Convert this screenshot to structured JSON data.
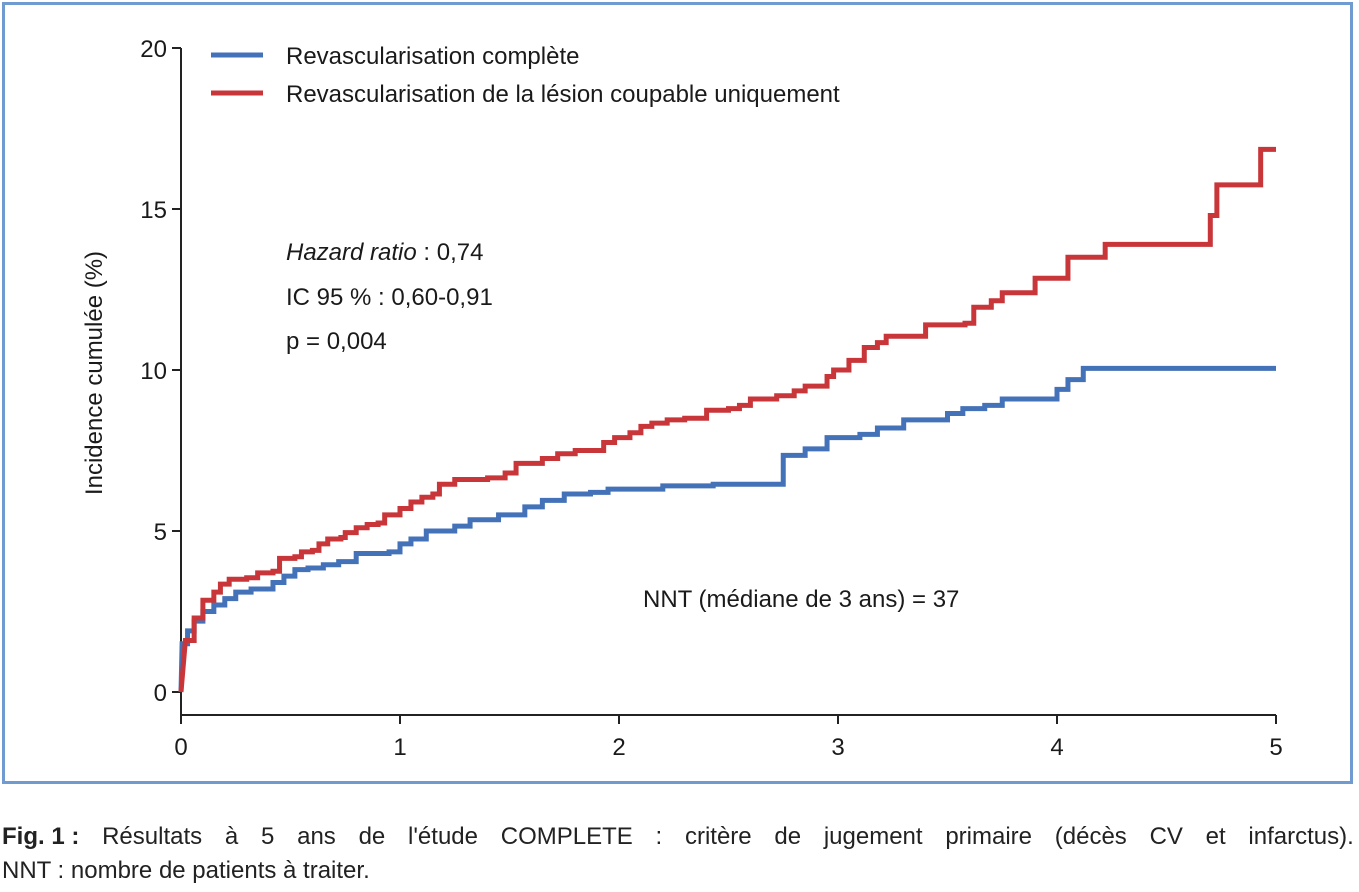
{
  "chart_data": {
    "type": "line",
    "ylabel": "Incidence cumulée (%)",
    "xlabel": "",
    "xlim": [
      0,
      5
    ],
    "ylim": [
      0,
      20
    ],
    "x_ticks": [
      "0",
      "1",
      "2",
      "3",
      "4",
      "5"
    ],
    "y_ticks": [
      "0",
      "5",
      "10",
      "15",
      "20"
    ],
    "grid": false,
    "legend_position": "top-left",
    "series": [
      {
        "name": "Revascularisation complète",
        "color": "#4472b8",
        "step": true,
        "points": [
          [
            0,
            0
          ],
          [
            0.005,
            1.5
          ],
          [
            0.03,
            1.9
          ],
          [
            0.06,
            2.2
          ],
          [
            0.1,
            2.5
          ],
          [
            0.15,
            2.7
          ],
          [
            0.2,
            2.9
          ],
          [
            0.25,
            3.1
          ],
          [
            0.32,
            3.2
          ],
          [
            0.42,
            3.4
          ],
          [
            0.47,
            3.6
          ],
          [
            0.52,
            3.8
          ],
          [
            0.58,
            3.85
          ],
          [
            0.65,
            3.95
          ],
          [
            0.72,
            4.05
          ],
          [
            0.8,
            4.3
          ],
          [
            0.95,
            4.35
          ],
          [
            1.0,
            4.6
          ],
          [
            1.05,
            4.75
          ],
          [
            1.12,
            5.0
          ],
          [
            1.25,
            5.15
          ],
          [
            1.32,
            5.35
          ],
          [
            1.45,
            5.5
          ],
          [
            1.57,
            5.75
          ],
          [
            1.65,
            5.95
          ],
          [
            1.75,
            6.15
          ],
          [
            1.87,
            6.2
          ],
          [
            1.95,
            6.3
          ],
          [
            2.2,
            6.4
          ],
          [
            2.43,
            6.45
          ],
          [
            2.75,
            7.35
          ],
          [
            2.85,
            7.55
          ],
          [
            2.95,
            7.9
          ],
          [
            3.1,
            8.0
          ],
          [
            3.18,
            8.2
          ],
          [
            3.3,
            8.45
          ],
          [
            3.5,
            8.65
          ],
          [
            3.57,
            8.8
          ],
          [
            3.67,
            8.9
          ],
          [
            3.75,
            9.1
          ],
          [
            4.0,
            9.4
          ],
          [
            4.05,
            9.7
          ],
          [
            4.12,
            10.05
          ],
          [
            5.0,
            10.05
          ]
        ]
      },
      {
        "name": "Revascularisation de la lésion coupable uniquement",
        "color": "#c8363a",
        "step": true,
        "points": [
          [
            0,
            0
          ],
          [
            0.02,
            1.6
          ],
          [
            0.06,
            2.3
          ],
          [
            0.1,
            2.85
          ],
          [
            0.15,
            3.1
          ],
          [
            0.18,
            3.35
          ],
          [
            0.22,
            3.5
          ],
          [
            0.3,
            3.55
          ],
          [
            0.35,
            3.7
          ],
          [
            0.42,
            3.75
          ],
          [
            0.45,
            4.15
          ],
          [
            0.52,
            4.2
          ],
          [
            0.55,
            4.35
          ],
          [
            0.6,
            4.4
          ],
          [
            0.63,
            4.6
          ],
          [
            0.67,
            4.75
          ],
          [
            0.73,
            4.8
          ],
          [
            0.75,
            4.95
          ],
          [
            0.8,
            5.1
          ],
          [
            0.85,
            5.2
          ],
          [
            0.9,
            5.25
          ],
          [
            0.93,
            5.5
          ],
          [
            1.0,
            5.7
          ],
          [
            1.05,
            5.9
          ],
          [
            1.1,
            6.05
          ],
          [
            1.15,
            6.15
          ],
          [
            1.18,
            6.45
          ],
          [
            1.25,
            6.6
          ],
          [
            1.4,
            6.65
          ],
          [
            1.48,
            6.8
          ],
          [
            1.53,
            7.1
          ],
          [
            1.65,
            7.25
          ],
          [
            1.72,
            7.4
          ],
          [
            1.8,
            7.5
          ],
          [
            1.93,
            7.75
          ],
          [
            1.98,
            7.9
          ],
          [
            2.05,
            8.05
          ],
          [
            2.1,
            8.25
          ],
          [
            2.15,
            8.35
          ],
          [
            2.22,
            8.45
          ],
          [
            2.3,
            8.5
          ],
          [
            2.4,
            8.75
          ],
          [
            2.5,
            8.8
          ],
          [
            2.55,
            8.9
          ],
          [
            2.6,
            9.1
          ],
          [
            2.72,
            9.2
          ],
          [
            2.8,
            9.35
          ],
          [
            2.85,
            9.5
          ],
          [
            2.95,
            9.8
          ],
          [
            2.98,
            10.0
          ],
          [
            3.05,
            10.3
          ],
          [
            3.12,
            10.7
          ],
          [
            3.18,
            10.85
          ],
          [
            3.22,
            11.05
          ],
          [
            3.4,
            11.4
          ],
          [
            3.58,
            11.45
          ],
          [
            3.62,
            11.95
          ],
          [
            3.7,
            12.15
          ],
          [
            3.75,
            12.4
          ],
          [
            3.9,
            12.85
          ],
          [
            4.05,
            13.5
          ],
          [
            4.22,
            13.9
          ],
          [
            4.7,
            14.8
          ],
          [
            4.73,
            15.75
          ],
          [
            4.93,
            16.85
          ],
          [
            5.0,
            16.85
          ]
        ]
      }
    ]
  },
  "annotations": {
    "hazard_ratio_label": "Hazard ratio",
    "hazard_ratio_value": " : 0,74",
    "ci": "IC 95 % : 0,60-0,91",
    "p_value": "p = 0,004",
    "nnt": "NNT (médiane de 3 ans) = 37"
  },
  "caption": {
    "fig_label": "Fig. 1 :",
    "line1_text": "Résultats à 5 ans de l'étude COMPLETE : critère de jugement primaire (décès CV et infarctus).",
    "line2_text": "NNT : nombre de patients à traiter."
  }
}
